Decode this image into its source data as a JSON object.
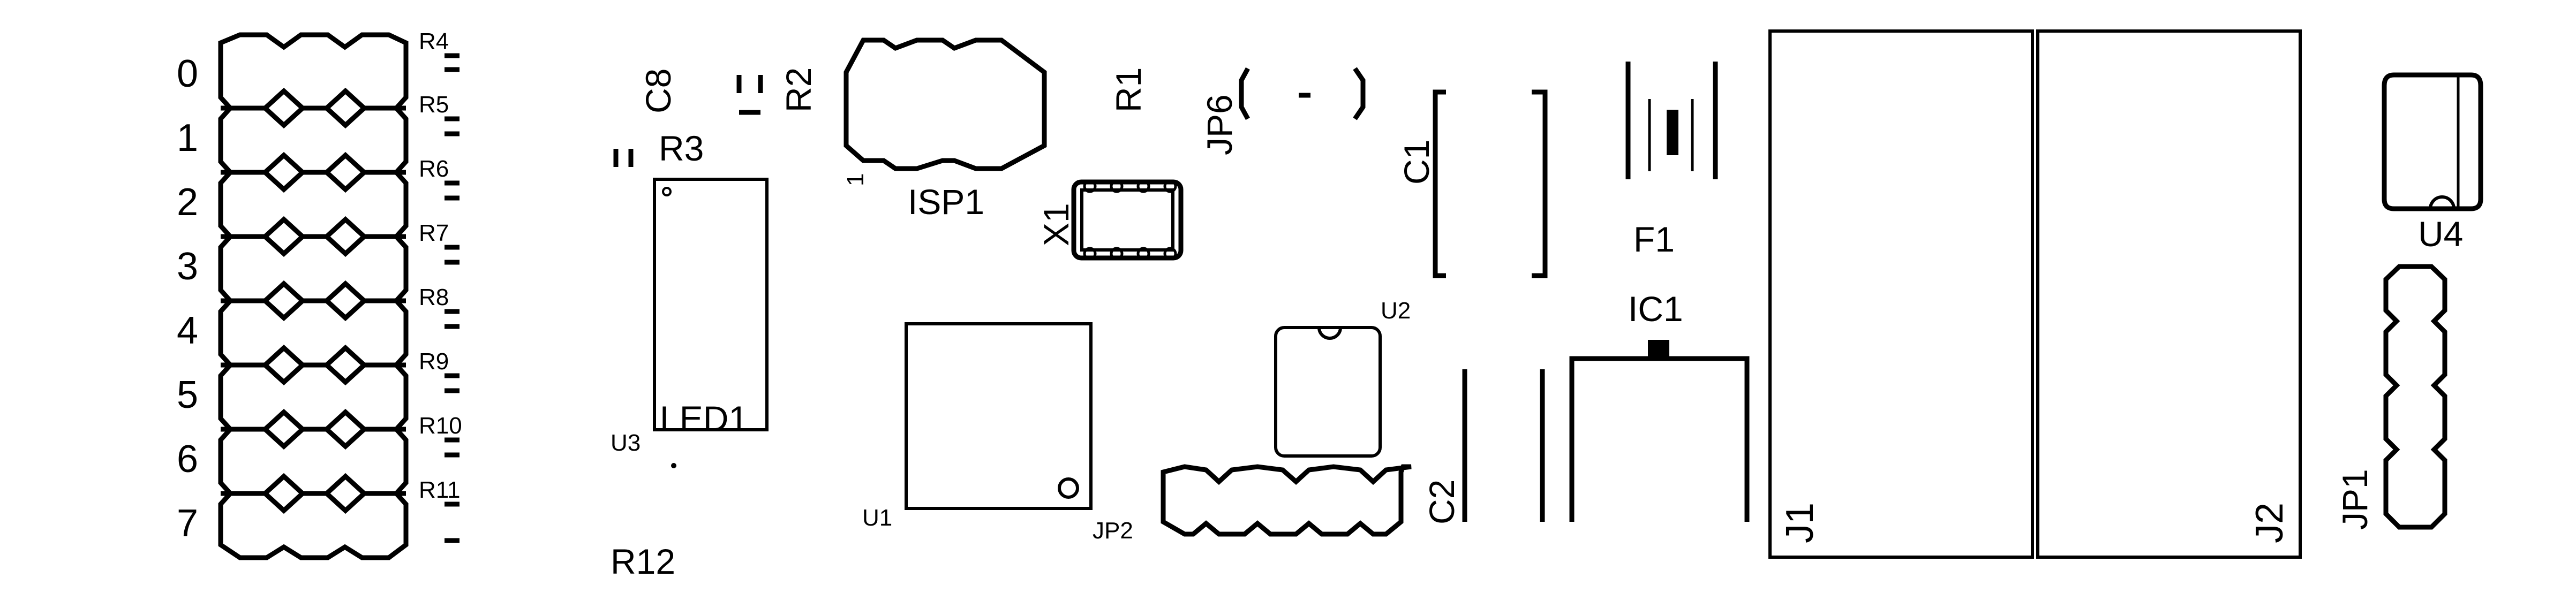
{
  "refdes": {
    "r4": "R4",
    "r5": "R5",
    "r6": "R6",
    "r7": "R7",
    "r8": "R8",
    "r9": "R9",
    "r10": "R10",
    "r11": "R11",
    "r12": "R12",
    "r1": "R1",
    "r2": "R2",
    "r3": "R3",
    "c1": "C1",
    "c2": "C2",
    "c8": "C8",
    "isp1": "ISP1",
    "isp1_pin": "1",
    "jp6": "JP6",
    "jp2": "JP2",
    "jp1": "JP1",
    "x1": "X1",
    "f1": "F1",
    "ic1": "IC1",
    "u1": "U1",
    "u2": "U2",
    "u3": "U3",
    "u4": "U4",
    "led1": "LED1",
    "j1": "J1",
    "j2": "J2"
  },
  "led_rows": [
    "0",
    "1",
    "2",
    "3",
    "4",
    "5",
    "6",
    "7"
  ]
}
